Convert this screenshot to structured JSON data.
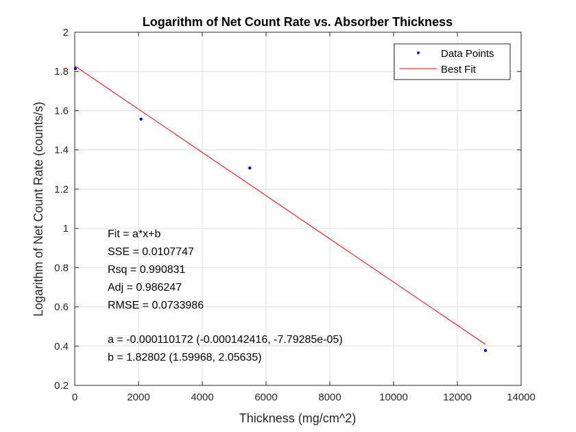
{
  "chart_data": {
    "type": "scatter",
    "title": "Logarithm of Net Count Rate vs. Absorber Thickness",
    "xlabel": "Thickness (mg/cm^2)",
    "ylabel": "Logarithm of Net Count Rate (counts/s)",
    "xlim": [
      0,
      14000
    ],
    "ylim": [
      0.2,
      2
    ],
    "xticks": [
      "0",
      "2000",
      "4000",
      "6000",
      "8000",
      "10000",
      "12000",
      "14000"
    ],
    "yticks": [
      "0.2",
      "0.4",
      "0.6",
      "0.8",
      "1",
      "1.2",
      "1.4",
      "1.6",
      "1.8",
      "2"
    ],
    "grid": true,
    "legend_position": "top-right",
    "series": [
      {
        "name": "Data Points",
        "kind": "points",
        "color": "#0000ff",
        "points": [
          {
            "x": 20,
            "y": 1.815
          },
          {
            "x": 2080,
            "y": 1.557
          },
          {
            "x": 5490,
            "y": 1.308
          },
          {
            "x": 12880,
            "y": 0.378
          }
        ]
      },
      {
        "name": "Best Fit",
        "kind": "line",
        "color": "#ff0000",
        "points": [
          {
            "x": 0,
            "y": 1.828
          },
          {
            "x": 12880,
            "y": 0.409
          }
        ]
      }
    ],
    "annotation_lines": [
      "Fit = a*x+b",
      "SSE = 0.0107747",
      "Rsq = 0.990831",
      "Adj = 0.986247",
      "RMSE = 0.0733986",
      "",
      "a = -0.000110172 (-0.000142416, -7.79285e-05)",
      "b = 1.82802 (1.59968, 2.05635)"
    ]
  }
}
